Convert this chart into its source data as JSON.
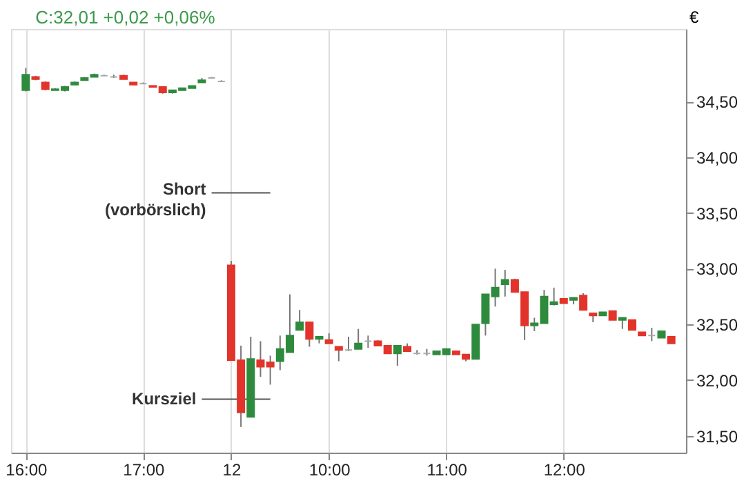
{
  "chart_data": {
    "type": "candlestick",
    "title": "C:32,01 +0,02 +0,06%",
    "ylabel": "€",
    "categories": [
      "16:00",
      null,
      null,
      null,
      null,
      null,
      null,
      null,
      null,
      null,
      null,
      null,
      "17:00",
      null,
      null,
      null,
      null,
      null,
      null,
      null,
      null,
      "12",
      null,
      null,
      null,
      null,
      null,
      null,
      null,
      null,
      null,
      "10:00",
      null,
      null,
      null,
      null,
      null,
      null,
      null,
      null,
      null,
      null,
      null,
      "11:00",
      null,
      null,
      null,
      null,
      null,
      null,
      null,
      null,
      null,
      null,
      null,
      "12:00",
      null,
      null,
      null,
      null,
      null,
      null,
      null,
      null,
      null,
      null,
      null
    ],
    "ohlc": [
      [
        34.6,
        34.8,
        34.59,
        34.74
      ],
      [
        34.72,
        34.73,
        34.69,
        34.7
      ],
      [
        34.67,
        34.68,
        34.6,
        34.61
      ],
      [
        34.6,
        34.62,
        34.6,
        34.61
      ],
      [
        34.6,
        34.64,
        34.59,
        34.63
      ],
      [
        34.65,
        34.68,
        34.65,
        34.67
      ],
      [
        34.69,
        34.72,
        34.69,
        34.71
      ],
      [
        34.72,
        34.75,
        34.72,
        34.74
      ],
      [
        34.73,
        34.74,
        34.73,
        34.73
      ],
      [
        34.72,
        34.74,
        34.71,
        34.72
      ],
      [
        34.73,
        34.74,
        34.7,
        34.7
      ],
      [
        34.67,
        34.67,
        34.65,
        34.65
      ],
      [
        34.66,
        34.67,
        34.66,
        34.66
      ],
      [
        34.64,
        34.64,
        34.63,
        34.63
      ],
      [
        34.63,
        34.63,
        34.57,
        34.58
      ],
      [
        34.58,
        34.6,
        34.57,
        34.6
      ],
      [
        34.6,
        34.62,
        34.6,
        34.62
      ],
      [
        34.62,
        34.64,
        34.62,
        34.64
      ],
      [
        34.67,
        34.71,
        34.67,
        34.69
      ],
      [
        34.71,
        34.72,
        34.71,
        34.71
      ],
      [
        34.68,
        34.69,
        34.68,
        34.68
      ],
      [
        33.03,
        33.07,
        32.18,
        32.18
      ],
      [
        32.18,
        32.31,
        31.58,
        31.71
      ],
      [
        31.67,
        32.39,
        31.67,
        32.19
      ],
      [
        32.18,
        32.35,
        32.03,
        32.12
      ],
      [
        32.16,
        32.22,
        31.96,
        32.12
      ],
      [
        32.17,
        32.4,
        32.09,
        32.28
      ],
      [
        32.25,
        32.77,
        32.25,
        32.4
      ],
      [
        32.45,
        32.63,
        32.45,
        32.52
      ],
      [
        32.52,
        32.52,
        32.3,
        32.37
      ],
      [
        32.37,
        32.39,
        32.33,
        32.39
      ],
      [
        32.36,
        32.42,
        32.33,
        32.33
      ],
      [
        32.3,
        32.3,
        32.17,
        32.27
      ],
      [
        32.27,
        32.39,
        32.26,
        32.27
      ],
      [
        32.28,
        32.46,
        32.28,
        32.33
      ],
      [
        32.35,
        32.4,
        32.29,
        32.35
      ],
      [
        32.35,
        32.36,
        32.31,
        32.31
      ],
      [
        32.31,
        32.31,
        32.24,
        32.24
      ],
      [
        32.24,
        32.31,
        32.13,
        32.31
      ],
      [
        32.3,
        32.33,
        32.26,
        32.26
      ],
      [
        32.24,
        32.27,
        32.23,
        32.24
      ],
      [
        32.24,
        32.28,
        32.22,
        32.24
      ],
      [
        32.23,
        32.26,
        32.23,
        32.26
      ],
      [
        32.23,
        32.28,
        32.23,
        32.28
      ],
      [
        32.26,
        32.26,
        32.23,
        32.23
      ],
      [
        32.23,
        32.23,
        32.17,
        32.19
      ],
      [
        32.19,
        32.5,
        32.19,
        32.5
      ],
      [
        32.51,
        32.77,
        32.4,
        32.77
      ],
      [
        32.75,
        33.0,
        32.66,
        32.83
      ],
      [
        32.86,
        32.99,
        32.75,
        32.9
      ],
      [
        32.9,
        32.91,
        32.79,
        32.79
      ],
      [
        32.79,
        32.79,
        32.36,
        32.49
      ],
      [
        32.49,
        32.56,
        32.44,
        32.51
      ],
      [
        32.51,
        32.81,
        32.51,
        32.75
      ],
      [
        32.68,
        32.83,
        32.67,
        32.7
      ],
      [
        32.73,
        32.73,
        32.69,
        32.69
      ],
      [
        32.72,
        32.74,
        32.68,
        32.74
      ],
      [
        32.76,
        32.78,
        32.63,
        32.63
      ],
      [
        32.6,
        32.6,
        32.52,
        32.58
      ],
      [
        32.58,
        32.61,
        32.58,
        32.61
      ],
      [
        32.62,
        32.62,
        32.54,
        32.54
      ],
      [
        32.54,
        32.56,
        32.46,
        32.56
      ],
      [
        32.54,
        32.54,
        32.45,
        32.45
      ],
      [
        32.43,
        32.43,
        32.4,
        32.4
      ],
      [
        32.4,
        32.47,
        32.35,
        32.4
      ],
      [
        32.38,
        32.44,
        32.38,
        32.44
      ],
      [
        32.39,
        32.39,
        32.33,
        32.33
      ]
    ],
    "ylim": [
      31.35,
      35.15
    ],
    "yticks": [
      {
        "value": 31.5,
        "label": "31,50"
      },
      {
        "value": 32.0,
        "label": "32,00"
      },
      {
        "value": 32.5,
        "label": "32,50"
      },
      {
        "value": 33.0,
        "label": "33,00"
      },
      {
        "value": 33.5,
        "label": "33,50"
      },
      {
        "value": 34.0,
        "label": "34,00"
      },
      {
        "value": 34.5,
        "label": "34,50"
      }
    ],
    "grid": "x",
    "ref_lines": [
      {
        "axis": "y",
        "value": 33.68,
        "label": "Short\n(vorbörslich)",
        "color": "#555555"
      },
      {
        "axis": "y",
        "value": 31.83,
        "label": "Kursziel",
        "color": "#555555"
      }
    ]
  }
}
